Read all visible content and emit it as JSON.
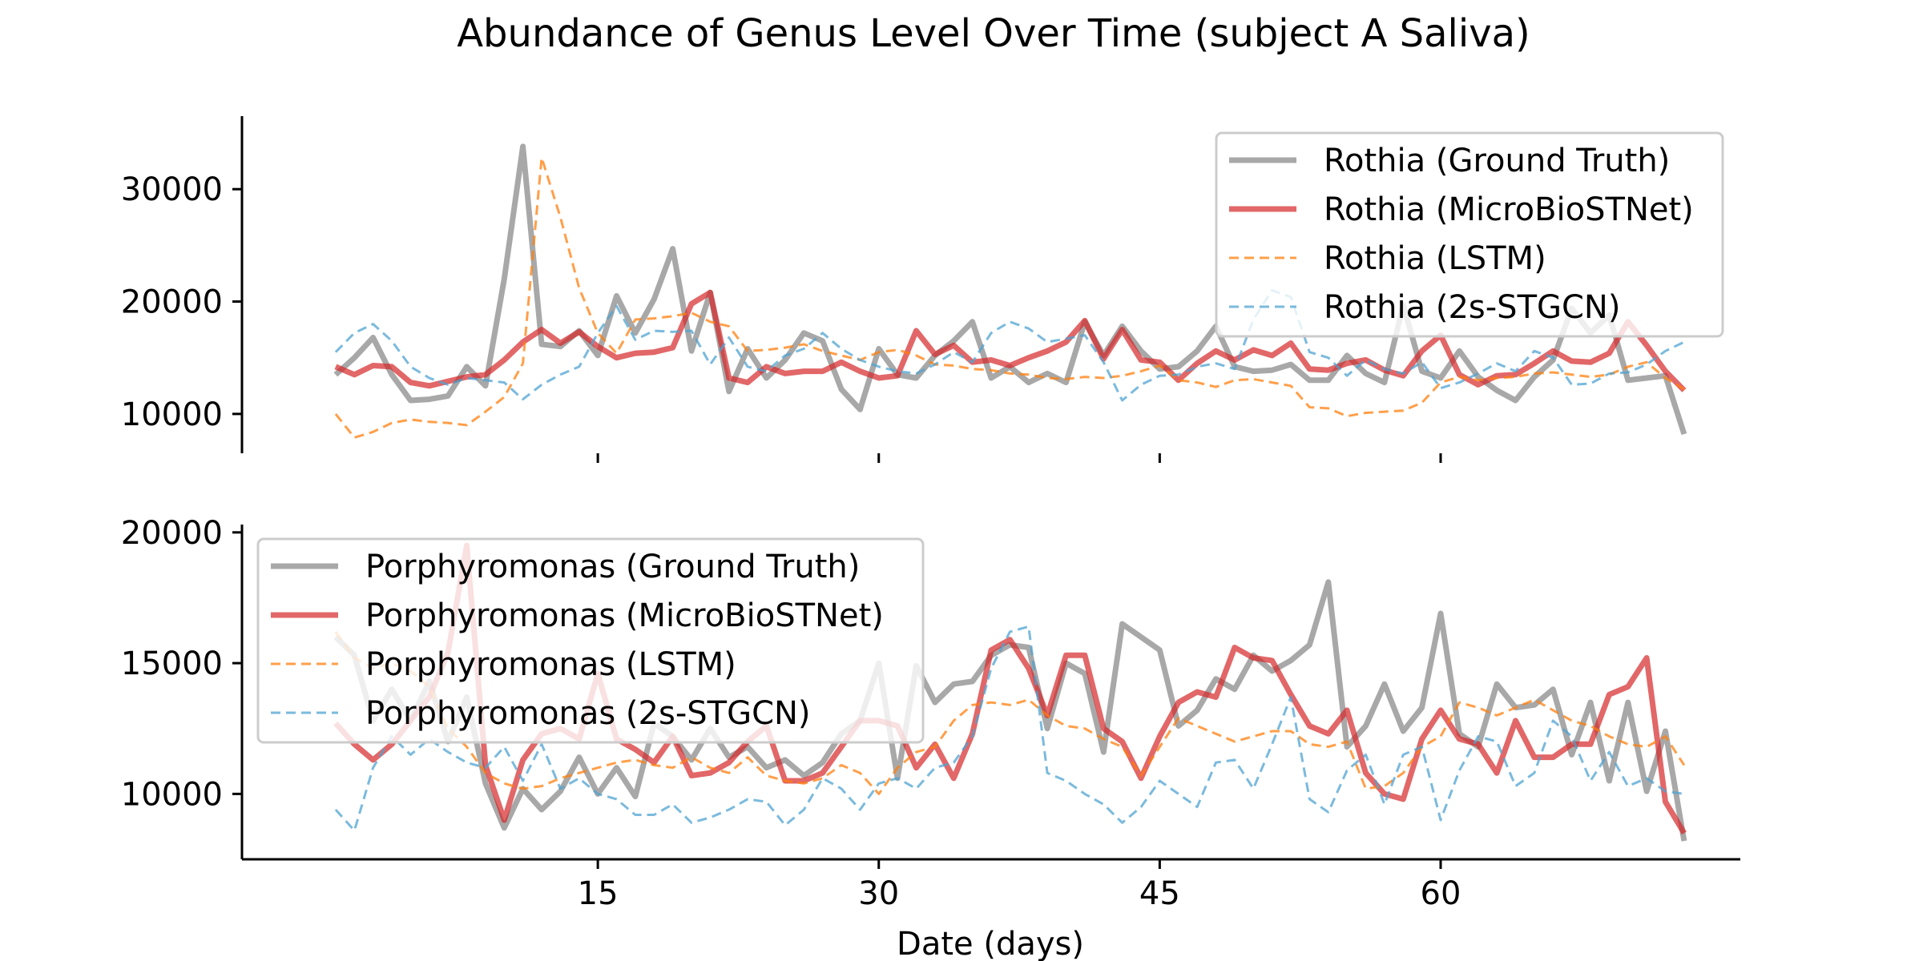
{
  "chart_data": {
    "title": "Abundance of Genus Level Over Time (subject A Saliva)",
    "xlabel": "Date (days)",
    "x_ticks": [
      15,
      30,
      45,
      60
    ],
    "xlim": [
      -4,
      76
    ],
    "x": [
      1,
      2,
      3,
      4,
      5,
      6,
      7,
      8,
      9,
      10,
      11,
      12,
      13,
      14,
      15,
      16,
      17,
      18,
      19,
      20,
      21,
      22,
      23,
      24,
      25,
      26,
      27,
      28,
      29,
      30,
      31,
      32,
      33,
      34,
      35,
      36,
      37,
      38,
      39,
      40,
      41,
      42,
      43,
      44,
      45,
      46,
      47,
      48,
      49,
      50,
      51,
      52,
      53,
      54,
      55,
      56,
      57,
      58,
      59,
      60,
      61,
      62,
      63,
      64,
      65,
      66,
      67,
      68,
      69,
      70,
      71,
      72,
      73
    ],
    "colors": {
      "ground_truth": "#999999",
      "microbiostnet": "#d62728",
      "lstm": "#ff7f0e",
      "stgcn": "#4fa3d1"
    },
    "panels": [
      {
        "name": "Rothia",
        "ylim": [
          6500,
          36500
        ],
        "y_ticks": [
          10000,
          20000,
          30000
        ],
        "legend_position": "top-right",
        "series": [
          {
            "name": "Rothia (Ground Truth)",
            "style": "ground_truth",
            "values": [
              13500,
              15000,
              16800,
              13500,
              11200,
              11300,
              11600,
              14200,
              12500,
              22000,
              33800,
              16200,
              16000,
              17400,
              15200,
              20500,
              17200,
              20200,
              24700,
              15600,
              20800,
              12000,
              15800,
              13200,
              14800,
              17200,
              16500,
              12200,
              10400,
              15800,
              13500,
              13200,
              15200,
              16500,
              18200,
              13200,
              14200,
              12800,
              13600,
              12800,
              18200,
              15200,
              17800,
              15600,
              14000,
              14200,
              15600,
              17800,
              14200,
              13800,
              13900,
              14400,
              13000,
              13000,
              15200,
              13600,
              12800,
              19700,
              13800,
              13200,
              15600,
              13300,
              12100,
              11200,
              13300,
              14800,
              19400,
              17200,
              18800,
              13000,
              13200,
              13400,
              8200
            ]
          },
          {
            "name": "Rothia (MicroBioSTNet)",
            "style": "microbiostnet",
            "values": [
              14200,
              13500,
              14300,
              14200,
              12800,
              12500,
              12900,
              13300,
              13500,
              14800,
              16400,
              17500,
              16300,
              17300,
              16000,
              15000,
              15400,
              15500,
              15900,
              19800,
              20800,
              13200,
              12800,
              14200,
              13600,
              13800,
              13800,
              14600,
              13800,
              13200,
              13400,
              17400,
              15300,
              16100,
              14600,
              14800,
              14300,
              15000,
              15600,
              16400,
              18300,
              14900,
              17500,
              14800,
              14600,
              13000,
              14500,
              15600,
              14800,
              15700,
              15200,
              16300,
              14000,
              13900,
              14500,
              14800,
              13900,
              13400,
              15600,
              17000,
              13500,
              12600,
              13400,
              13500,
              14500,
              15600,
              14700,
              14600,
              15400,
              18200,
              16100,
              13800,
              12100
            ]
          },
          {
            "name": "Rothia (LSTM)",
            "style": "lstm",
            "values": [
              10000,
              7900,
              8400,
              9200,
              9500,
              9300,
              9200,
              9000,
              10200,
              11500,
              14500,
              32800,
              27500,
              21200,
              17200,
              15400,
              18400,
              18500,
              18700,
              19000,
              18200,
              17800,
              15600,
              15700,
              15900,
              16200,
              15600,
              15200,
              14800,
              15500,
              15700,
              15200,
              14400,
              14300,
              14000,
              13900,
              13600,
              13500,
              13200,
              13100,
              13300,
              13200,
              13400,
              13800,
              14300,
              13000,
              12800,
              12400,
              13000,
              13100,
              12800,
              12500,
              10600,
              10500,
              9800,
              10100,
              10200,
              10300,
              11000,
              12800,
              13300,
              13000,
              13200,
              13300,
              13600,
              13700,
              13500,
              13300,
              13500,
              14200,
              14600,
              13200,
              12200
            ]
          },
          {
            "name": "Rothia (2s-STGCN)",
            "style": "stgcn",
            "values": [
              15500,
              17200,
              18000,
              16500,
              14200,
              13200,
              12600,
              13200,
              13000,
              12800,
              11300,
              12600,
              13500,
              14200,
              17200,
              19600,
              16600,
              17400,
              17300,
              17400,
              14400,
              16800,
              14200,
              13800,
              15200,
              15800,
              17200,
              15800,
              14800,
              14200,
              13800,
              13600,
              14400,
              15500,
              14600,
              17200,
              18200,
              17600,
              16400,
              16700,
              17000,
              14600,
              11200,
              12600,
              13400,
              13500,
              14200,
              14500,
              14000,
              18400,
              21000,
              20400,
              15500,
              15000,
              13400,
              14800,
              14000,
              13600,
              14600,
              12300,
              12800,
              13600,
              14500,
              13800,
              15600,
              15000,
              12600,
              12700,
              13600,
              13700,
              14400,
              15600,
              16400
            ]
          }
        ]
      },
      {
        "name": "Porphyromonas",
        "ylim": [
          7500,
          20300
        ],
        "y_ticks": [
          10000,
          15000,
          20000
        ],
        "legend_position": "top-left",
        "series": [
          {
            "name": "Porphyromonas (Ground Truth)",
            "style": "ground_truth",
            "values": [
              16000,
              15300,
              12800,
              14000,
              12800,
              14300,
              12000,
              13700,
              10400,
              8700,
              10200,
              9400,
              10100,
              11400,
              10000,
              11000,
              9900,
              12700,
              12200,
              11300,
              12500,
              11400,
              11800,
              11000,
              11300,
              10700,
              11200,
              12300,
              12800,
              15000,
              10600,
              14900,
              13500,
              14200,
              14300,
              15300,
              15700,
              15600,
              12500,
              15000,
              14600,
              11600,
              16500,
              16000,
              15500,
              12600,
              13200,
              14400,
              14000,
              15300,
              14700,
              15100,
              15700,
              18100,
              11800,
              12600,
              14200,
              12400,
              13300,
              16900,
              12300,
              11800,
              14200,
              13300,
              13400,
              14000,
              11500,
              13500,
              10500,
              13500,
              10100,
              12400,
              8200
            ]
          },
          {
            "name": "Porphyromonas (MicroBioSTNet)",
            "style": "microbiostnet",
            "values": [
              12700,
              11900,
              11300,
              11900,
              12800,
              13700,
              15400,
              19500,
              11100,
              9000,
              11300,
              12300,
              12500,
              12100,
              14600,
              12100,
              11700,
              11200,
              12200,
              10700,
              10800,
              11200,
              12000,
              12600,
              10500,
              10500,
              10800,
              11800,
              12800,
              12800,
              12600,
              11000,
              11900,
              10600,
              12300,
              15500,
              15900,
              14800,
              13000,
              15300,
              15300,
              12500,
              12000,
              10600,
              12200,
              13500,
              13900,
              13700,
              15600,
              15200,
              15100,
              13800,
              12600,
              12300,
              13200,
              10800,
              10000,
              9800,
              12100,
              13200,
              12100,
              11900,
              10800,
              12800,
              11400,
              11400,
              11900,
              11900,
              13800,
              14100,
              15200,
              9700,
              8500
            ]
          },
          {
            "name": "Porphyromonas (LSTM)",
            "style": "lstm",
            "values": [
              16200,
              15200,
              14800,
              15000,
              14700,
              14100,
              12500,
              11800,
              10800,
              10400,
              10200,
              10300,
              10600,
              10800,
              11000,
              11200,
              11300,
              11100,
              11000,
              11400,
              11000,
              10800,
              11400,
              10700,
              10500,
              10400,
              10600,
              11100,
              10800,
              10000,
              11000,
              11600,
              11800,
              12800,
              13400,
              13500,
              13400,
              13600,
              13000,
              12600,
              12500,
              12100,
              11800,
              10700,
              11800,
              12900,
              12600,
              12300,
              12000,
              12200,
              12400,
              12400,
              11900,
              11800,
              12000,
              10200,
              10300,
              10800,
              11800,
              12200,
              13500,
              13300,
              13000,
              13300,
              13600,
              13200,
              12800,
              12600,
              12200,
              11900,
              11800,
              12200,
              11100
            ]
          },
          {
            "name": "Porphyromonas (2s-STGCN)",
            "style": "stgcn",
            "values": [
              9400,
              8600,
              11000,
              12200,
              11500,
              12100,
              11600,
              11200,
              11000,
              11800,
              10500,
              11900,
              10200,
              10600,
              10000,
              9800,
              9200,
              9200,
              9600,
              8900,
              9100,
              9400,
              9800,
              9700,
              8800,
              9400,
              10600,
              10200,
              9400,
              10400,
              10600,
              10200,
              11000,
              11200,
              12200,
              14800,
              16200,
              16400,
              10800,
              10500,
              10000,
              9600,
              8900,
              9500,
              10500,
              10000,
              9500,
              11200,
              11300,
              10200,
              11900,
              13700,
              9800,
              9300,
              10900,
              11500,
              9600,
              11500,
              11800,
              9000,
              10900,
              12200,
              12000,
              10300,
              10800,
              12800,
              12200,
              10500,
              11600,
              10300,
              10600,
              10100,
              10000
            ]
          }
        ]
      }
    ]
  }
}
